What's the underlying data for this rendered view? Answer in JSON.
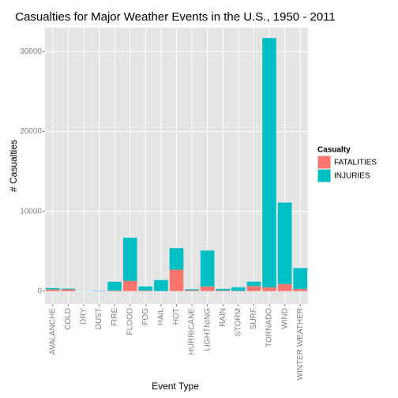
{
  "chart_data": {
    "type": "stacked_bar",
    "title": "Casualties for Major Weather Events in the U.S., 1950 - 2011",
    "x_label": "Event Type",
    "y_label": "# Casualties",
    "legend_title": "Casualty",
    "categories": [
      "AVALANCHE",
      "COLD",
      "DRY",
      "DUST",
      "FIRE",
      "FLOOD",
      "FOG",
      "HAIL",
      "HOT",
      "HURRICANE",
      "LIGHTNING",
      "RAIN",
      "STORM",
      "SURF",
      "TORNADO",
      "WIND",
      "WINTER WEATHER"
    ],
    "series": [
      {
        "name": "FATALITIES",
        "color": "#F8766D",
        "values": [
          224,
          230,
          2,
          20,
          90,
          1300,
          80,
          20,
          2700,
          130,
          600,
          100,
          50,
          650,
          500,
          900,
          300
        ]
      },
      {
        "name": "INJURIES",
        "color": "#00BFC4",
        "values": [
          170,
          100,
          20,
          50,
          1100,
          5400,
          520,
          1380,
          2700,
          120,
          4500,
          200,
          450,
          550,
          31200,
          10200,
          2600
        ]
      }
    ],
    "ylim": [
      -1600,
      33000
    ],
    "yticks": [
      0,
      10000,
      20000,
      30000
    ],
    "grid": true,
    "legend_position": "right"
  }
}
